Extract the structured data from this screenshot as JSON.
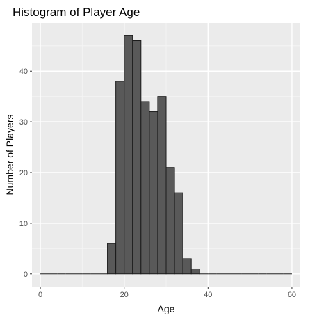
{
  "colors": {
    "panel": "#ebebeb",
    "grid_major": "#ffffff",
    "grid_minor": "#f5f5f5",
    "bar_fill": "#595959",
    "bar_stroke": "#1a1a1a",
    "tick": "#333333"
  },
  "chart_data": {
    "type": "bar",
    "title": "Histogram of Player Age",
    "xlabel": "Age",
    "ylabel": "Number of Players",
    "xlim": [
      -2,
      62
    ],
    "ylim": [
      -2.5,
      49.5
    ],
    "x_ticks": [
      0,
      20,
      40,
      60
    ],
    "y_ticks": [
      0,
      10,
      20,
      30,
      40
    ],
    "grid": true,
    "bin_width": 2,
    "bins": [
      {
        "x0": 0,
        "x1": 2,
        "count": 0
      },
      {
        "x0": 2,
        "x1": 4,
        "count": 0
      },
      {
        "x0": 4,
        "x1": 6,
        "count": 0
      },
      {
        "x0": 6,
        "x1": 8,
        "count": 0
      },
      {
        "x0": 8,
        "x1": 10,
        "count": 0
      },
      {
        "x0": 10,
        "x1": 12,
        "count": 0
      },
      {
        "x0": 12,
        "x1": 14,
        "count": 0
      },
      {
        "x0": 14,
        "x1": 16,
        "count": 0
      },
      {
        "x0": 16,
        "x1": 18,
        "count": 6
      },
      {
        "x0": 18,
        "x1": 20,
        "count": 38
      },
      {
        "x0": 20,
        "x1": 22,
        "count": 47
      },
      {
        "x0": 22,
        "x1": 24,
        "count": 46
      },
      {
        "x0": 24,
        "x1": 26,
        "count": 34
      },
      {
        "x0": 26,
        "x1": 28,
        "count": 32
      },
      {
        "x0": 28,
        "x1": 30,
        "count": 35
      },
      {
        "x0": 30,
        "x1": 32,
        "count": 21
      },
      {
        "x0": 32,
        "x1": 34,
        "count": 16
      },
      {
        "x0": 34,
        "x1": 36,
        "count": 3
      },
      {
        "x0": 36,
        "x1": 38,
        "count": 1
      },
      {
        "x0": 38,
        "x1": 40,
        "count": 0
      },
      {
        "x0": 40,
        "x1": 42,
        "count": 0
      },
      {
        "x0": 42,
        "x1": 44,
        "count": 0
      },
      {
        "x0": 44,
        "x1": 46,
        "count": 0
      },
      {
        "x0": 46,
        "x1": 48,
        "count": 0
      },
      {
        "x0": 48,
        "x1": 50,
        "count": 0
      },
      {
        "x0": 50,
        "x1": 52,
        "count": 0
      },
      {
        "x0": 52,
        "x1": 54,
        "count": 0
      },
      {
        "x0": 54,
        "x1": 56,
        "count": 0
      },
      {
        "x0": 56,
        "x1": 58,
        "count": 0
      },
      {
        "x0": 58,
        "x1": 60,
        "count": 0
      }
    ]
  }
}
